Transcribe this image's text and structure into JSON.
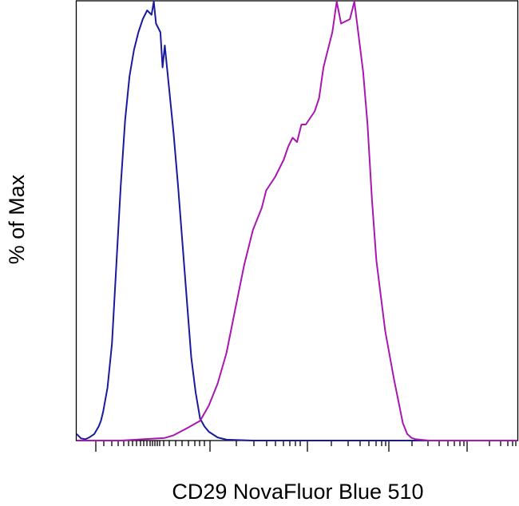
{
  "chart_data": {
    "type": "line",
    "title": "",
    "xlabel": "CD29 NovaFluor Blue 510",
    "ylabel": "% of Max",
    "x_scale": "log (biexponential)",
    "xlim": [
      0,
      100
    ],
    "ylim": [
      0,
      100
    ],
    "tick_labels_visible": false,
    "grid": false,
    "legend": "none",
    "series": [
      {
        "color": "#1a1aa0",
        "x": [
          0,
          1,
          2,
          3,
          4,
          5,
          5.5,
          6,
          7,
          8,
          9,
          10,
          11,
          12,
          12.5,
          13,
          14,
          15,
          16,
          17,
          17.5,
          18,
          19,
          19.5,
          20,
          21,
          22,
          23,
          24,
          25,
          26,
          27,
          28,
          29,
          30,
          32,
          34,
          40,
          50,
          60,
          70,
          80,
          90,
          100
        ],
        "y": [
          1.5,
          0.5,
          0.3,
          0.8,
          1.5,
          3.2,
          4.5,
          6.5,
          12,
          22,
          40,
          58,
          73,
          83,
          86,
          89,
          93,
          96,
          98,
          97,
          100,
          95,
          93,
          85,
          90,
          80,
          70,
          58,
          45,
          32,
          19,
          11,
          5,
          3.2,
          2,
          0.7,
          0.2,
          0,
          0,
          0,
          0,
          0,
          0,
          0
        ]
      },
      {
        "color": "#a818b0",
        "x": [
          0,
          10,
          15,
          20,
          22,
          25,
          28,
          30,
          32,
          34,
          36,
          38,
          40,
          42,
          43,
          45,
          47,
          48,
          49,
          50,
          51,
          52,
          54,
          55,
          56,
          57,
          58,
          59,
          60,
          62,
          63,
          64,
          65,
          66,
          67,
          68,
          70,
          72,
          74,
          75,
          76,
          77,
          80,
          85,
          90,
          100
        ],
        "y": [
          0,
          0,
          0.3,
          0.6,
          1.2,
          2.8,
          4.5,
          8,
          13,
          20,
          30,
          40,
          48,
          53,
          57,
          60,
          64,
          67,
          69,
          68,
          72,
          72,
          75,
          78,
          85,
          89,
          93,
          100,
          95,
          96,
          100,
          92,
          84,
          72,
          55,
          41,
          25,
          14,
          4,
          1.5,
          0.6,
          0.3,
          0,
          0,
          0,
          0
        ]
      }
    ]
  }
}
